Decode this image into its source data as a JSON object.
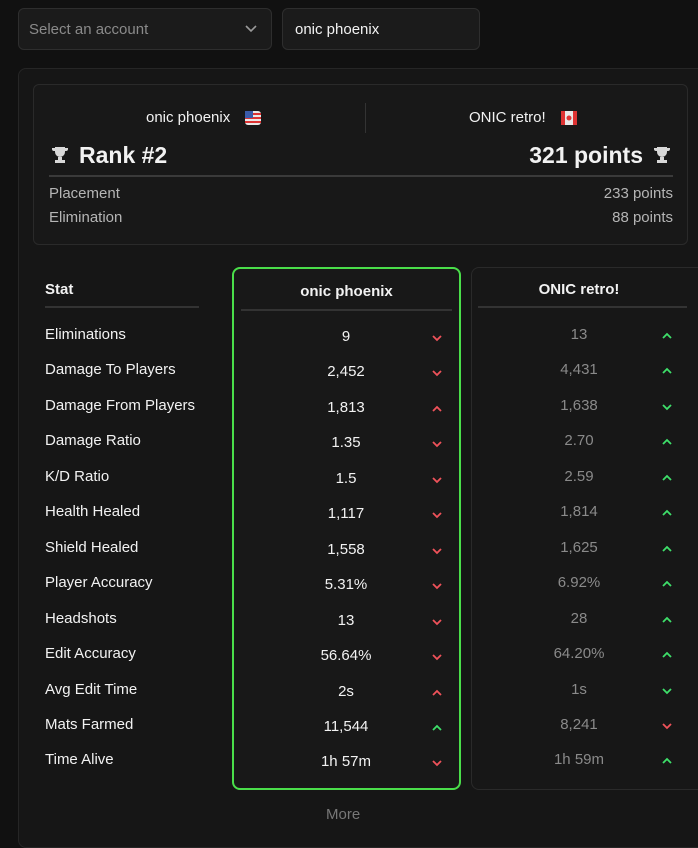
{
  "account_select": {
    "placeholder": "Select an account"
  },
  "search": {
    "value": "onic phoenix"
  },
  "summary": {
    "player1": "onic phoenix",
    "player2": "ONIC retro!",
    "rank": "Rank #2",
    "points": "321 points",
    "rows": [
      [
        "Placement",
        "233 points"
      ],
      [
        "Elimination",
        "88 points"
      ]
    ]
  },
  "table": {
    "header": [
      "Stat",
      "onic phoenix",
      "ONIC retro!"
    ],
    "rows": [
      {
        "stat": "Eliminations",
        "p1": {
          "value": "9",
          "arrow": "down",
          "color": "#f0525a"
        },
        "p2": {
          "value": "13",
          "arrow": "up",
          "color": "#3ee06a"
        }
      },
      {
        "stat": "Damage To Players",
        "p1": {
          "value": "2,452",
          "arrow": "down",
          "color": "#f0525a"
        },
        "p2": {
          "value": "4,431",
          "arrow": "up",
          "color": "#3ee06a"
        }
      },
      {
        "stat": "Damage From Players",
        "p1": {
          "value": "1,813",
          "arrow": "up",
          "color": "#f0525a"
        },
        "p2": {
          "value": "1,638",
          "arrow": "down",
          "color": "#3ee06a"
        }
      },
      {
        "stat": "Damage Ratio",
        "p1": {
          "value": "1.35",
          "arrow": "down",
          "color": "#f0525a"
        },
        "p2": {
          "value": "2.70",
          "arrow": "up",
          "color": "#3ee06a"
        }
      },
      {
        "stat": "K/D Ratio",
        "p1": {
          "value": "1.5",
          "arrow": "down",
          "color": "#f0525a"
        },
        "p2": {
          "value": "2.59",
          "arrow": "up",
          "color": "#3ee06a"
        }
      },
      {
        "stat": "Health Healed",
        "p1": {
          "value": "1,117",
          "arrow": "down",
          "color": "#f0525a"
        },
        "p2": {
          "value": "1,814",
          "arrow": "up",
          "color": "#3ee06a"
        }
      },
      {
        "stat": "Shield Healed",
        "p1": {
          "value": "1,558",
          "arrow": "down",
          "color": "#f0525a"
        },
        "p2": {
          "value": "1,625",
          "arrow": "up",
          "color": "#3ee06a"
        }
      },
      {
        "stat": "Player Accuracy",
        "p1": {
          "value": "5.31%",
          "arrow": "down",
          "color": "#f0525a"
        },
        "p2": {
          "value": "6.92%",
          "arrow": "up",
          "color": "#3ee06a"
        }
      },
      {
        "stat": "Headshots",
        "p1": {
          "value": "13",
          "arrow": "down",
          "color": "#f0525a"
        },
        "p2": {
          "value": "28",
          "arrow": "up",
          "color": "#3ee06a"
        }
      },
      {
        "stat": "Edit Accuracy",
        "p1": {
          "value": "56.64%",
          "arrow": "down",
          "color": "#f0525a"
        },
        "p2": {
          "value": "64.20%",
          "arrow": "up",
          "color": "#3ee06a"
        }
      },
      {
        "stat": "Avg Edit Time",
        "p1": {
          "value": "2s",
          "arrow": "up",
          "color": "#f0525a"
        },
        "p2": {
          "value": "1s",
          "arrow": "down",
          "color": "#3ee06a"
        }
      },
      {
        "stat": "Mats Farmed",
        "p1": {
          "value": "11,544",
          "arrow": "up",
          "color": "#3ee06a"
        },
        "p2": {
          "value": "8,241",
          "arrow": "down",
          "color": "#f0525a"
        }
      },
      {
        "stat": "Time Alive",
        "p1": {
          "value": "1h 57m",
          "arrow": "down",
          "color": "#f0525a"
        },
        "p2": {
          "value": "1h 59m",
          "arrow": "up",
          "color": "#3ee06a"
        }
      }
    ]
  },
  "more": "More"
}
